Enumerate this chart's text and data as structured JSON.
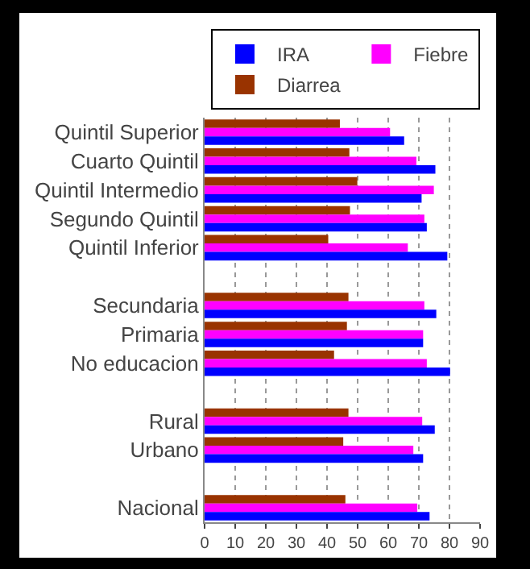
{
  "chart_data": {
    "type": "bar",
    "orientation": "horizontal",
    "categories": [
      "Quintil Superior",
      "Cuarto Quintil",
      "Quintil Intermedio",
      "Segundo Quintil",
      "Quintil Inferior",
      null,
      "Secundaria",
      "Primaria",
      "No educacion",
      null,
      "Rural",
      "Urbano",
      null,
      "Nacional"
    ],
    "series": [
      {
        "name": "IRA",
        "color": "#0000ff",
        "values": [
          65.2,
          75.4,
          70.9,
          72.6,
          79.3,
          null,
          75.7,
          71.4,
          80.2,
          null,
          75.2,
          71.4,
          null,
          73.5
        ]
      },
      {
        "name": "Fiebre",
        "color": "#ff00ff",
        "values": [
          60.6,
          69.2,
          74.9,
          71.8,
          66.4,
          null,
          71.8,
          71.4,
          72.6,
          null,
          71.1,
          68.2,
          null,
          69.5
        ]
      },
      {
        "name": "Diarrea",
        "color": "#993300",
        "values": [
          44.2,
          47.3,
          49.9,
          47.5,
          40.4,
          null,
          47,
          46.5,
          42.3,
          null,
          47,
          45.3,
          null,
          46
        ]
      }
    ],
    "xlim": [
      0,
      90
    ],
    "xticks": [
      0,
      10,
      20,
      30,
      40,
      50,
      60,
      70,
      80,
      90
    ],
    "grid": "x",
    "legend": "top"
  }
}
